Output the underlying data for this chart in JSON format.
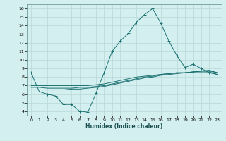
{
  "xlabel": "Humidex (Indice chaleur)",
  "xlim": [
    -0.5,
    23.5
  ],
  "ylim": [
    3.5,
    16.5
  ],
  "xticks": [
    0,
    1,
    2,
    3,
    4,
    5,
    6,
    7,
    8,
    9,
    10,
    11,
    12,
    13,
    14,
    15,
    16,
    17,
    18,
    19,
    20,
    21,
    22,
    23
  ],
  "yticks": [
    4,
    5,
    6,
    7,
    8,
    9,
    10,
    11,
    12,
    13,
    14,
    15,
    16
  ],
  "bg_color": "#d4efef",
  "grid_color": "#b8d8d8",
  "line_color": "#1a7070",
  "line1_y": [
    8.5,
    6.3,
    6.0,
    5.8,
    4.8,
    4.8,
    4.0,
    3.9,
    6.1,
    8.5,
    11.0,
    12.2,
    13.1,
    14.4,
    15.3,
    16.0,
    14.3,
    12.2,
    10.5,
    9.1,
    9.5,
    9.0,
    8.5,
    8.3
  ],
  "line2_y": [
    6.5,
    6.5,
    6.5,
    6.5,
    6.5,
    6.6,
    6.6,
    6.7,
    6.8,
    6.9,
    7.1,
    7.3,
    7.5,
    7.7,
    7.9,
    8.0,
    8.2,
    8.3,
    8.4,
    8.5,
    8.6,
    8.7,
    8.8,
    8.5
  ],
  "line3_y": [
    6.8,
    6.8,
    6.7,
    6.7,
    6.7,
    6.7,
    6.8,
    6.8,
    6.9,
    7.0,
    7.2,
    7.4,
    7.6,
    7.8,
    8.0,
    8.1,
    8.3,
    8.4,
    8.5,
    8.5,
    8.6,
    8.7,
    8.7,
    8.5
  ],
  "line4_y": [
    7.0,
    7.0,
    7.0,
    7.0,
    7.0,
    7.0,
    7.0,
    7.0,
    7.1,
    7.2,
    7.4,
    7.6,
    7.8,
    8.0,
    8.1,
    8.2,
    8.3,
    8.4,
    8.5,
    8.5,
    8.6,
    8.6,
    8.6,
    8.3
  ]
}
